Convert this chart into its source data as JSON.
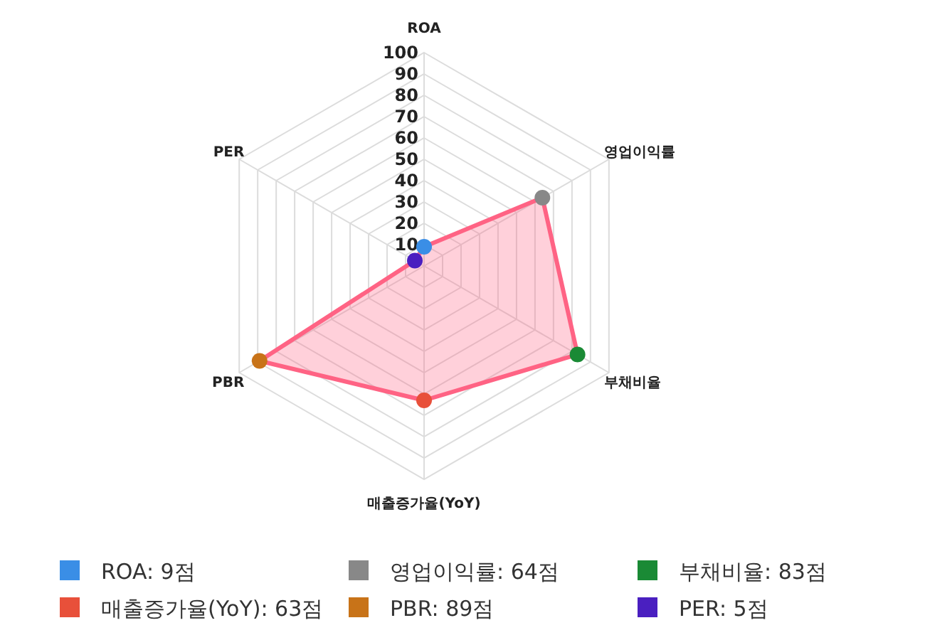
{
  "chart_data": {
    "type": "radar",
    "categories": [
      "ROA",
      "영업이익률",
      "부채비율",
      "매출증가율(YoY)",
      "PBR",
      "PER"
    ],
    "series": [
      {
        "color": "#ff6384",
        "values": [
          9,
          64,
          83,
          63,
          89,
          5
        ],
        "colors": [
          "#3a8ee6",
          "#888888",
          "#1a8a35",
          "#e8503a",
          "#c87318",
          "#4a1fc0"
        ]
      }
    ],
    "annotations": [
      "ROA: 9점",
      "영업이익률: 64점",
      "부채비율: 83점",
      "매출증가율(YoY): 63점",
      "PBR: 89점",
      "PER: 5점"
    ],
    "ylim": [
      0,
      100
    ],
    "yticks": [
      10,
      20,
      30,
      40,
      50,
      60,
      70,
      80,
      90,
      100
    ],
    "marker": "circle"
  }
}
